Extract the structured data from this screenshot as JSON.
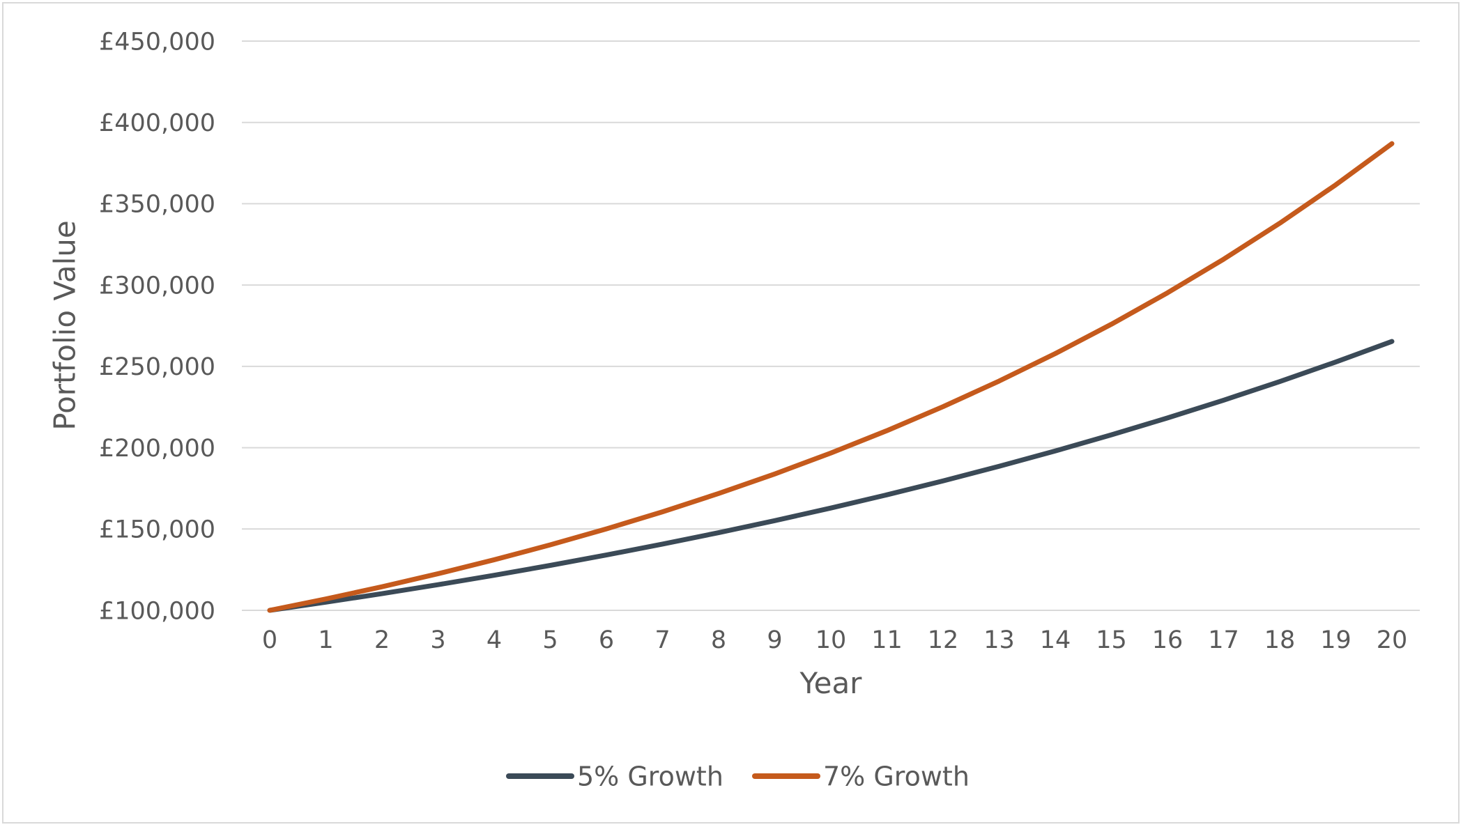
{
  "chart_data": {
    "type": "line",
    "x": [
      0,
      1,
      2,
      3,
      4,
      5,
      6,
      7,
      8,
      9,
      10,
      11,
      12,
      13,
      14,
      15,
      16,
      17,
      18,
      19,
      20
    ],
    "xlabel": "Year",
    "ylabel": "Portfolio Value",
    "ylim": [
      100000,
      450000
    ],
    "yticks": [
      100000,
      150000,
      200000,
      250000,
      300000,
      350000,
      400000,
      450000
    ],
    "ytick_labels": [
      "£100,000",
      "£150,000",
      "£200,000",
      "£250,000",
      "£300,000",
      "£350,000",
      "£400,000",
      "£450,000"
    ],
    "grid": true,
    "legend_position": "bottom",
    "series": [
      {
        "name": "5% Growth",
        "color": "#3b4a57",
        "values": [
          100000,
          105000,
          110250,
          115763,
          121551,
          127628,
          134010,
          140710,
          147746,
          155133,
          162889,
          171034,
          179586,
          188565,
          197993,
          207893,
          218287,
          229202,
          240662,
          252695,
          265330
        ]
      },
      {
        "name": "7% Growth",
        "color": "#c55a1c",
        "values": [
          100000,
          107000,
          114490,
          122504,
          131080,
          140255,
          150073,
          160578,
          171819,
          183846,
          196715,
          210485,
          225219,
          240985,
          257853,
          275903,
          295216,
          315882,
          337993,
          361653,
          386968
        ]
      }
    ]
  }
}
